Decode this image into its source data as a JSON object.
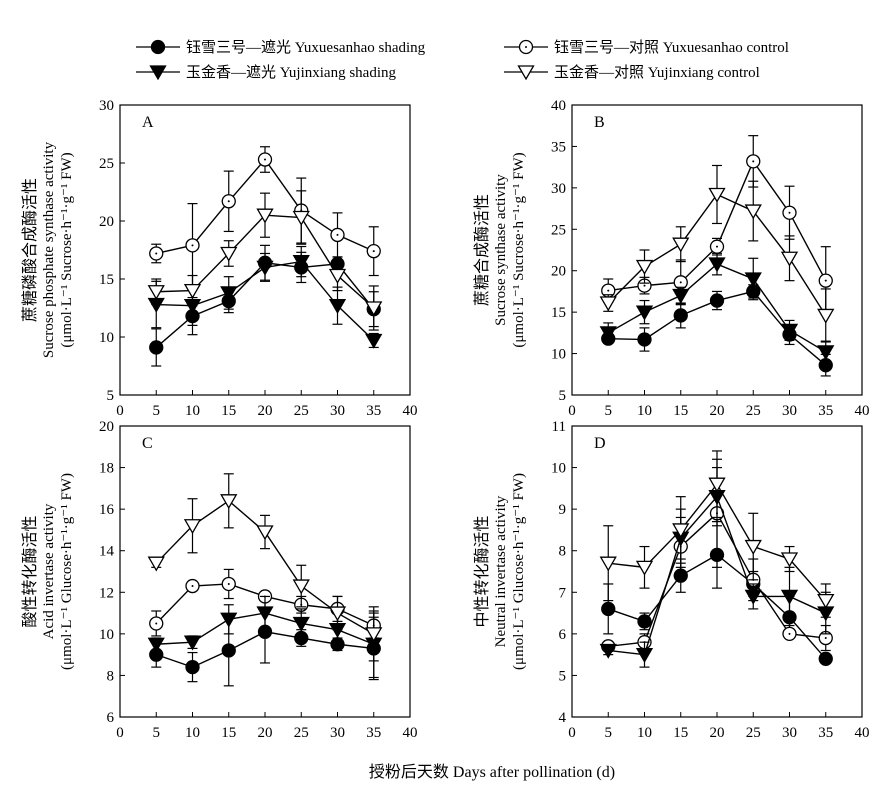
{
  "legend": [
    {
      "label": "钰雪三号—遮光 Yuxuesanhao shading",
      "marker": "circle-filled"
    },
    {
      "label": "钰雪三号—对照 Yuxuesanhao control",
      "marker": "circle-open"
    },
    {
      "label": "玉金香—遮光 Yujinxiang shading",
      "marker": "triangle-filled"
    },
    {
      "label": "玉金香—对照 Yujinxiang control",
      "marker": "triangle-open"
    }
  ],
  "x_axis_label": "授粉后天数 Days after pollination (d)",
  "chart_data": [
    {
      "type": "line",
      "panel": "A",
      "ylabel": [
        "蔗糖磷酸合成酶活性",
        "Sucrose phosphate synthase activity",
        "(μmol·L⁻¹ Sucrose·h⁻¹·g⁻¹ FW)"
      ],
      "xlim": [
        0,
        40
      ],
      "ylim": [
        5,
        30
      ],
      "xticks": [
        "0",
        "5",
        "10",
        "15",
        "20",
        "25",
        "30",
        "35",
        "40"
      ],
      "yticks": [
        "5",
        "10",
        "15",
        "20",
        "25",
        "30"
      ],
      "x": [
        5,
        10,
        15,
        20,
        25,
        30,
        35
      ],
      "series": [
        {
          "name": "钰雪三号—遮光 Yuxuesanhao shading",
          "marker": "circle-filled",
          "values": [
            9.1,
            11.8,
            13.1,
            16.4,
            16.0,
            16.3,
            12.4
          ],
          "errors": [
            1.6,
            1.6,
            1.0,
            1.5,
            1.3,
            0.6,
            1.5
          ]
        },
        {
          "name": "钰雪三号—对照 Yuxuesanhao control",
          "marker": "circle-open",
          "values": [
            17.2,
            17.9,
            21.7,
            25.3,
            20.9,
            18.8,
            17.4
          ],
          "errors": [
            0.8,
            3.6,
            2.6,
            1.1,
            2.8,
            1.9,
            2.1
          ]
        },
        {
          "name": "玉金香—遮光 Yujinxiang shading",
          "marker": "triangle-filled",
          "values": [
            12.8,
            12.7,
            13.8,
            16.0,
            16.5,
            12.7,
            9.7
          ],
          "errors": [
            2.0,
            1.7,
            1.4,
            1.2,
            1.3,
            1.6,
            0.6
          ]
        },
        {
          "name": "玉金香—对照 Yujinxiang control",
          "marker": "triangle-open",
          "values": [
            13.9,
            14.0,
            17.2,
            20.5,
            20.3,
            15.3,
            12.5
          ],
          "errors": [
            1.1,
            1.3,
            1.1,
            1.9,
            2.3,
            1.3,
            1.9
          ]
        }
      ]
    },
    {
      "type": "line",
      "panel": "B",
      "ylabel": [
        "蔗糖合成酶活性",
        "Sucrose synthase activity",
        "(μmol·L⁻¹ Sucrose·h⁻¹·g⁻¹ FW)"
      ],
      "xlim": [
        0,
        40
      ],
      "ylim": [
        5,
        40
      ],
      "xticks": [
        "0",
        "5",
        "10",
        "15",
        "20",
        "25",
        "30",
        "35",
        "40"
      ],
      "yticks": [
        "5",
        "10",
        "15",
        "20",
        "25",
        "30",
        "35",
        "40"
      ],
      "x": [
        5,
        10,
        15,
        20,
        25,
        30,
        35
      ],
      "series": [
        {
          "name": "钰雪三号—遮光 Yuxuesanhao shading",
          "marker": "circle-filled",
          "values": [
            11.8,
            11.7,
            14.6,
            16.4,
            17.5,
            12.3,
            8.6
          ],
          "errors": [
            0.5,
            1.4,
            1.5,
            1.1,
            0.8,
            1.2,
            1.3
          ]
        },
        {
          "name": "钰雪三号—对照 Yuxuesanhao control",
          "marker": "circle-open",
          "values": [
            17.6,
            18.2,
            18.6,
            22.9,
            33.2,
            27.0,
            18.8
          ],
          "errors": [
            1.4,
            1.0,
            2.7,
            1.0,
            3.1,
            3.2,
            4.1
          ]
        },
        {
          "name": "玉金香—遮光 Yujinxiang shading",
          "marker": "triangle-filled",
          "values": [
            12.5,
            15.0,
            17.0,
            20.8,
            19.0,
            12.8,
            10.2
          ],
          "errors": [
            1.2,
            1.4,
            1.0,
            1.3,
            2.5,
            1.2,
            1.3
          ]
        },
        {
          "name": "玉金香—对照 Yujinxiang control",
          "marker": "triangle-open",
          "values": [
            16.1,
            20.5,
            23.2,
            29.2,
            27.2,
            21.5,
            14.6
          ],
          "errors": [
            1.0,
            2.0,
            2.1,
            3.5,
            3.6,
            2.7,
            3.2
          ]
        }
      ]
    },
    {
      "type": "line",
      "panel": "C",
      "ylabel": [
        "酸性转化酶活性",
        "Acid invertase activity",
        "(μmol·L⁻¹ Glucose·h⁻¹·g⁻¹ FW)"
      ],
      "xlim": [
        0,
        40
      ],
      "ylim": [
        6,
        20
      ],
      "xticks": [
        "0",
        "5",
        "10",
        "15",
        "20",
        "25",
        "30",
        "35",
        "40"
      ],
      "yticks": [
        "6",
        "8",
        "10",
        "12",
        "14",
        "16",
        "18",
        "20"
      ],
      "x": [
        5,
        10,
        15,
        20,
        25,
        30,
        35
      ],
      "series": [
        {
          "name": "钰雪三号—遮光 Yuxuesanhao shading",
          "marker": "circle-filled",
          "values": [
            9.0,
            8.4,
            9.2,
            10.1,
            9.8,
            9.5,
            9.3
          ],
          "errors": [
            0.6,
            0.7,
            1.7,
            1.5,
            0.4,
            0.3,
            1.5
          ]
        },
        {
          "name": "钰雪三号—对照 Yuxuesanhao control",
          "marker": "circle-open",
          "values": [
            10.5,
            12.3,
            12.4,
            11.8,
            11.4,
            11.2,
            10.4
          ],
          "errors": [
            0.6,
            0.2,
            0.7,
            0.2,
            0.4,
            0.6,
            0.6
          ]
        },
        {
          "name": "玉金香—遮光 Yujinxiang shading",
          "marker": "triangle-filled",
          "values": [
            9.5,
            9.6,
            10.7,
            11.0,
            10.5,
            10.2,
            9.5
          ],
          "errors": [
            0.3,
            0.3,
            0.7,
            0.8,
            0.7,
            0.8,
            1.6
          ]
        },
        {
          "name": "玉金香—对照 Yujinxiang control",
          "marker": "triangle-open",
          "values": [
            13.4,
            15.2,
            16.4,
            14.9,
            12.3,
            11.0,
            10.0
          ],
          "errors": [
            0.2,
            1.3,
            1.3,
            0.8,
            1.0,
            0.8,
            1.3
          ]
        }
      ]
    },
    {
      "type": "line",
      "panel": "D",
      "ylabel": [
        "中性转化酶活性",
        "Neutral invertase activity",
        "(μmol·L⁻¹ Glucose·h⁻¹·g⁻¹ FW)"
      ],
      "xlim": [
        0,
        40
      ],
      "ylim": [
        4,
        11
      ],
      "xticks": [
        "0",
        "5",
        "10",
        "15",
        "20",
        "25",
        "30",
        "35",
        "40"
      ],
      "yticks": [
        "4",
        "5",
        "6",
        "7",
        "8",
        "9",
        "10",
        "11"
      ],
      "x": [
        5,
        10,
        15,
        20,
        25,
        30,
        35
      ],
      "series": [
        {
          "name": "钰雪三号—遮光 Yuxuesanhao shading",
          "marker": "circle-filled",
          "values": [
            6.6,
            6.3,
            7.4,
            7.9,
            7.2,
            6.4,
            5.4
          ],
          "errors": [
            0.6,
            0.2,
            0.4,
            0.8,
            0.3,
            0.5,
            0.1
          ]
        },
        {
          "name": "钰雪三号—对照 Yuxuesanhao control",
          "marker": "circle-open",
          "values": [
            5.7,
            5.8,
            8.1,
            8.9,
            7.3,
            6.0,
            5.9
          ],
          "errors": [
            0.1,
            0.2,
            0.7,
            1.3,
            0.5,
            0.1,
            0.3
          ]
        },
        {
          "name": "玉金香—遮光 Yujinxiang shading",
          "marker": "triangle-filled",
          "values": [
            5.6,
            5.5,
            8.3,
            9.3,
            6.9,
            6.9,
            6.5
          ],
          "errors": [
            0.1,
            0.3,
            0.7,
            0.7,
            0.3,
            0.7,
            0.5
          ]
        },
        {
          "name": "玉金香—对照 Yujinxiang control",
          "marker": "triangle-open",
          "values": [
            7.7,
            7.6,
            8.5,
            9.6,
            8.1,
            7.8,
            6.8
          ],
          "errors": [
            0.9,
            0.5,
            0.8,
            0.8,
            0.8,
            0.3,
            0.4
          ]
        }
      ]
    }
  ]
}
